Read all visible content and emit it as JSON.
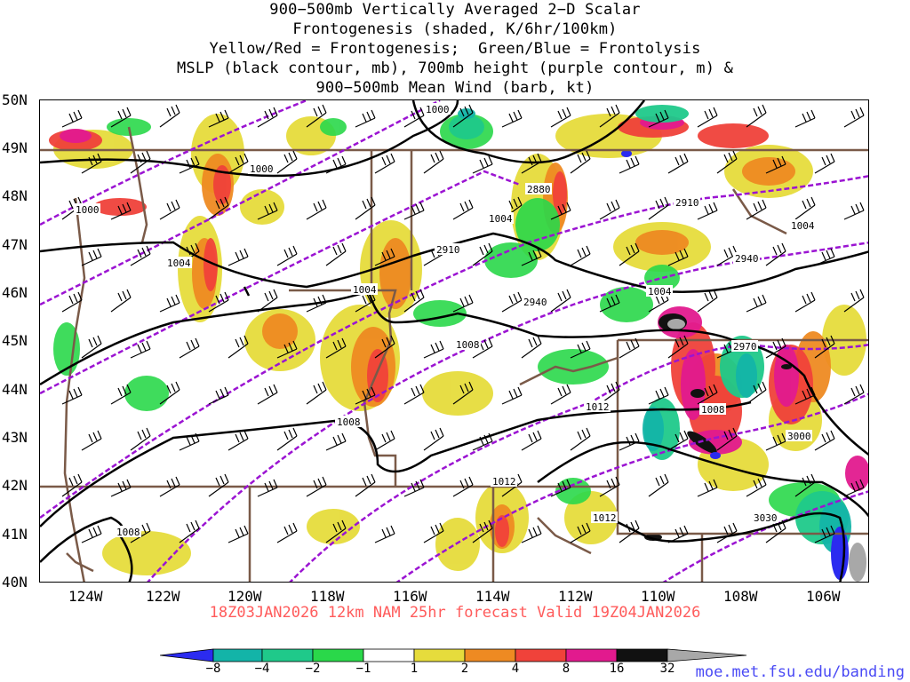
{
  "title_lines": [
    "900−500mb Vertically Averaged 2−D Scalar",
    "Frontogenesis (shaded, K/6hr/100km)",
    "Yellow/Red = Frontogenesis;  Green/Blue = Frontolysis",
    "MSLP (black contour, mb), 700mb height (purple contour, m) &",
    "900−500mb Mean Wind (barb, kt)"
  ],
  "lat_labels": [
    "50N",
    "49N",
    "48N",
    "47N",
    "46N",
    "45N",
    "44N",
    "43N",
    "42N",
    "41N",
    "40N"
  ],
  "lon_labels": [
    "124W",
    "122W",
    "120W",
    "118W",
    "116W",
    "114W",
    "112W",
    "110W",
    "108W",
    "106W"
  ],
  "mslp_labels": [
    "1000",
    "1000",
    "1000",
    "1004",
    "1004",
    "1004",
    "1004",
    "1004",
    "1008",
    "1008",
    "1008",
    "1008",
    "1012",
    "1012",
    "1012"
  ],
  "height_labels": [
    "2880",
    "2910",
    "2910",
    "2940",
    "2940",
    "2970",
    "3000",
    "3030"
  ],
  "valid_text": "18Z03JAN2026 12km NAM 25hr forecast Valid 19Z04JAN2026",
  "credit": "moe.met.fsu.edu/banding",
  "colorbar": {
    "labels": [
      "−8",
      "−4",
      "−2",
      "−1",
      "1",
      "2",
      "4",
      "8",
      "16",
      "32"
    ],
    "colors": [
      "#2b2bf0",
      "#13b4a8",
      "#1fc98a",
      "#2ad84a",
      "#ffffff",
      "#e6dc3c",
      "#ee8a22",
      "#f0423a",
      "#e21a8e",
      "#111111",
      "#a8a8a8"
    ]
  },
  "colors": {
    "mslp": "#000000",
    "height": "#9b14d2",
    "border": "#7a5a48",
    "valid_text": "#ff5b5b",
    "credit": "#4a4af5"
  }
}
